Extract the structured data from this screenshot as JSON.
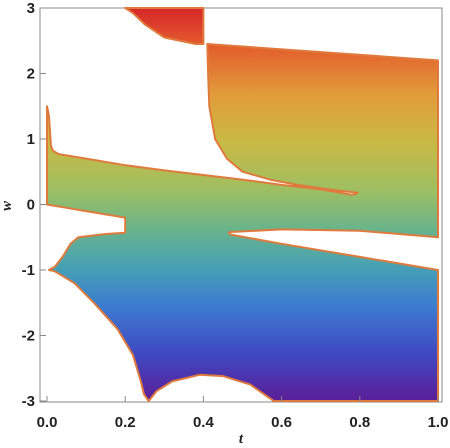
{
  "chart_data": {
    "type": "area",
    "xlabel": "t",
    "ylabel": "w",
    "xlim": [
      0.0,
      1.0
    ],
    "ylim": [
      -3.0,
      3.0
    ],
    "x_ticks": [
      "0.0",
      "0.2",
      "0.4",
      "0.6",
      "0.8",
      "1.0"
    ],
    "y_ticks": [
      "3",
      "2",
      "1",
      "0",
      "-1",
      "-2",
      "-3"
    ],
    "fill": "vertical rainbow gradient by w (red at w=3 through orange, yellow, green, blue to purple at w=-3)",
    "edge_color": "#e07a3c",
    "frame": "box",
    "regions": [
      {
        "points": [
          [
            0.0,
            1.5
          ],
          [
            0.005,
            1.35
          ],
          [
            0.008,
            1.1
          ],
          [
            0.01,
            0.9
          ],
          [
            0.015,
            0.82
          ],
          [
            0.03,
            0.77
          ],
          [
            0.1,
            0.7
          ],
          [
            0.2,
            0.6
          ],
          [
            0.3,
            0.52
          ],
          [
            0.4,
            0.45
          ],
          [
            0.5,
            0.38
          ],
          [
            0.6,
            0.3
          ],
          [
            0.7,
            0.23
          ],
          [
            0.78,
            0.15
          ],
          [
            0.79,
            0.16
          ],
          [
            0.795,
            0.18
          ],
          [
            0.72,
            0.23
          ],
          [
            0.64,
            0.3
          ],
          [
            0.57,
            0.38
          ],
          [
            0.5,
            0.5
          ],
          [
            0.46,
            0.7
          ],
          [
            0.43,
            1.0
          ],
          [
            0.415,
            1.5
          ],
          [
            0.412,
            2.0
          ],
          [
            0.41,
            2.45
          ],
          [
            1.0,
            2.2
          ],
          [
            1.0,
            -0.5
          ],
          [
            0.8,
            -0.4
          ],
          [
            0.6,
            -0.38
          ],
          [
            0.47,
            -0.42
          ],
          [
            0.465,
            -0.43
          ],
          [
            0.47,
            -0.46
          ],
          [
            0.6,
            -0.6
          ],
          [
            0.8,
            -0.8
          ],
          [
            1.0,
            -1.0
          ],
          [
            1.0,
            -3.0
          ],
          [
            0.58,
            -3.0
          ],
          [
            0.52,
            -2.75
          ],
          [
            0.45,
            -2.62
          ],
          [
            0.39,
            -2.6
          ],
          [
            0.32,
            -2.7
          ],
          [
            0.28,
            -2.85
          ],
          [
            0.26,
            -3.0
          ],
          [
            0.248,
            -2.9
          ],
          [
            0.24,
            -2.7
          ],
          [
            0.22,
            -2.3
          ],
          [
            0.18,
            -1.9
          ],
          [
            0.12,
            -1.5
          ],
          [
            0.07,
            -1.2
          ],
          [
            0.02,
            -1.02
          ],
          [
            0.005,
            -1.0
          ],
          [
            0.02,
            -0.95
          ],
          [
            0.04,
            -0.8
          ],
          [
            0.06,
            -0.6
          ],
          [
            0.08,
            -0.5
          ],
          [
            0.15,
            -0.45
          ],
          [
            0.2,
            -0.43
          ],
          [
            0.2,
            -0.2
          ],
          [
            0.1,
            -0.1
          ],
          [
            0.05,
            -0.05
          ],
          [
            0.0,
            0.0
          ]
        ]
      },
      {
        "points": [
          [
            0.2,
            3.0
          ],
          [
            0.4,
            3.0
          ],
          [
            0.4,
            2.45
          ],
          [
            0.38,
            2.45
          ],
          [
            0.3,
            2.55
          ],
          [
            0.25,
            2.75
          ],
          [
            0.22,
            2.92
          ]
        ]
      }
    ]
  }
}
